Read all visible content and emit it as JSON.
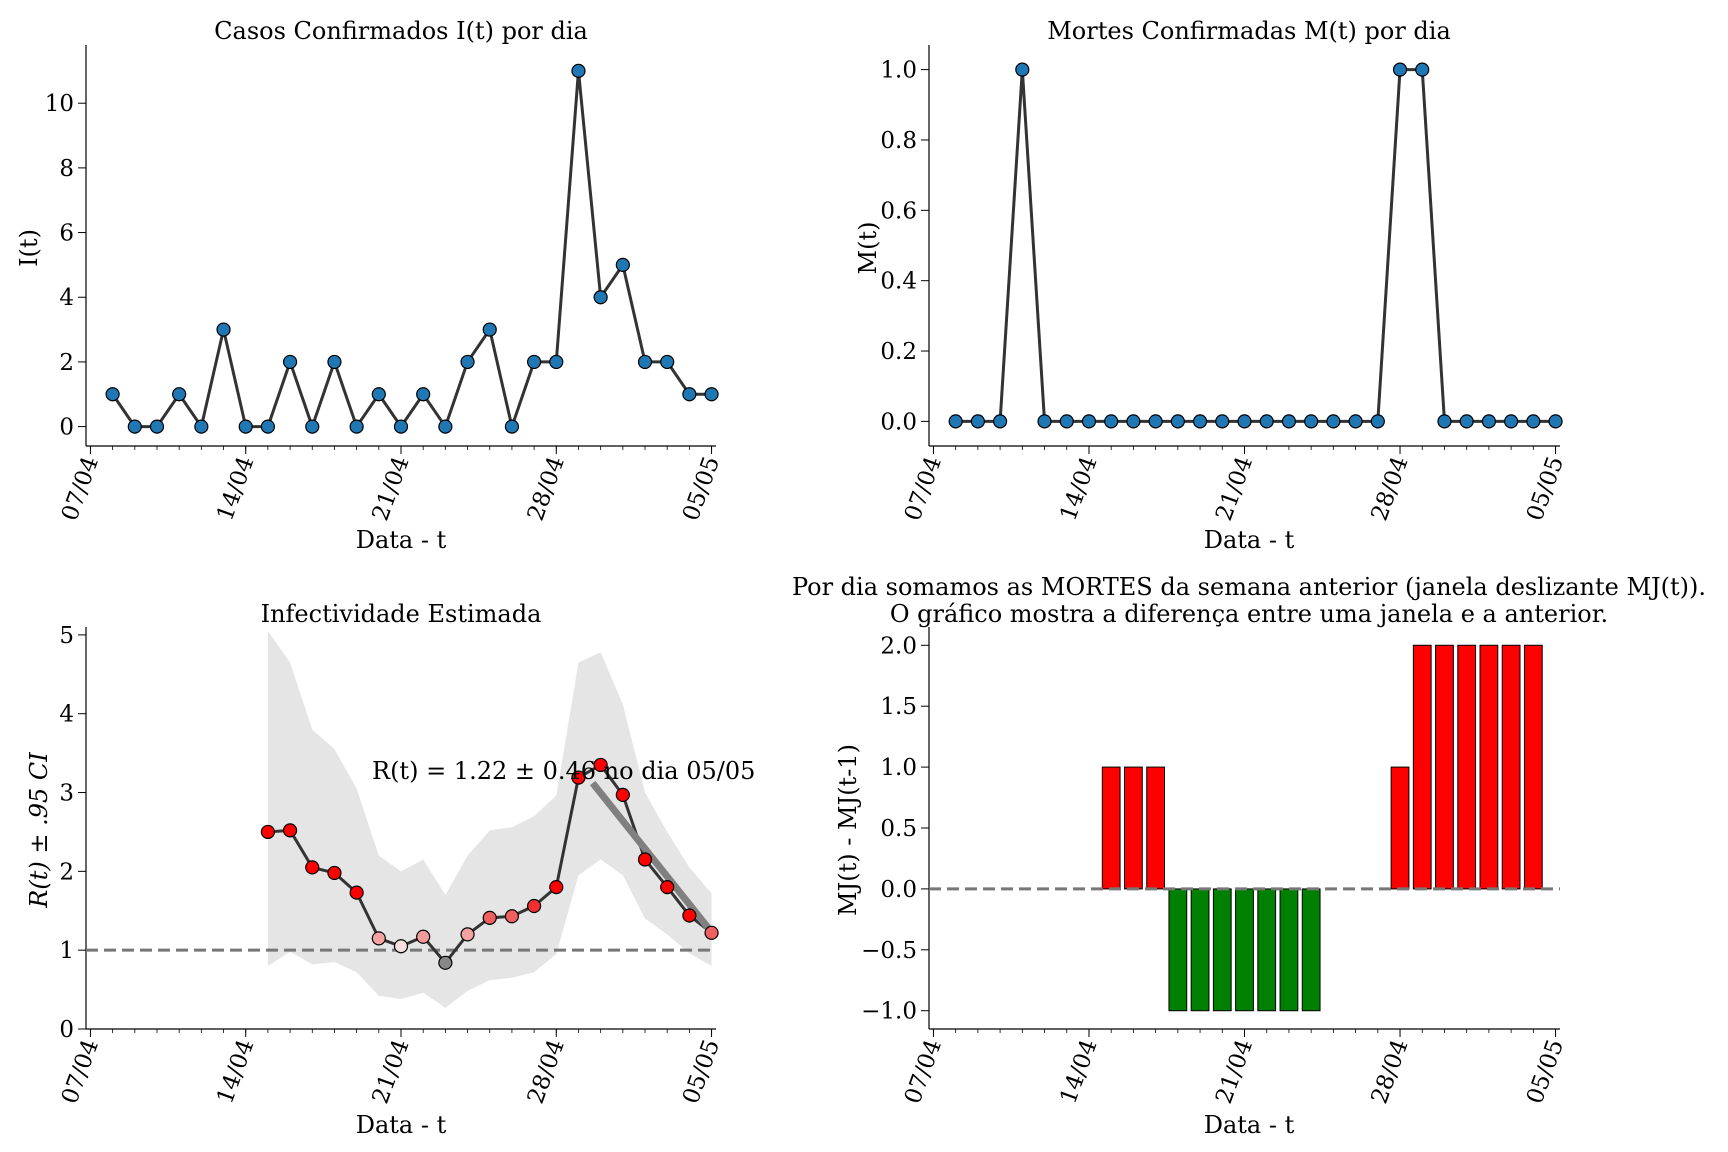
{
  "x_ticks": [
    "07/04",
    "14/04",
    "21/04",
    "28/04",
    "05/05"
  ],
  "charts": [
    {
      "id": "cases",
      "title": "Casos Confirmados I(t) por dia",
      "ylabel": "I(t)",
      "xlabel": "Data - t"
    },
    {
      "id": "deaths",
      "title": "Mortes Confirmadas M(t) por dia",
      "ylabel": "M(t)",
      "xlabel": "Data - t"
    },
    {
      "id": "rt",
      "title": "Infectividade Estimada",
      "ylabel": "R(t) ± .95 CI",
      "xlabel": "Data - t",
      "annotation": "R(t) = 1.22 ± 0.46 no dia 05/05"
    },
    {
      "id": "mj",
      "title": "Por dia somamos as MORTES da semana anterior (janela deslizante MJ(t)).",
      "title2": "O gráfico mostra a diferença entre uma janela e a anterior.",
      "ylabel": "MJ(t) - MJ(t-1)",
      "xlabel": "Data - t"
    }
  ],
  "chart_data": [
    {
      "type": "line",
      "title": "Casos Confirmados I(t) por dia",
      "xlabel": "Data - t",
      "ylabel": "I(t)",
      "x": [
        "08/04",
        "09/04",
        "10/04",
        "11/04",
        "12/04",
        "13/04",
        "14/04",
        "15/04",
        "16/04",
        "17/04",
        "18/04",
        "19/04",
        "20/04",
        "21/04",
        "22/04",
        "23/04",
        "24/04",
        "25/04",
        "26/04",
        "27/04",
        "28/04",
        "29/04",
        "30/04",
        "01/05",
        "02/05",
        "03/05",
        "04/05",
        "05/05"
      ],
      "values": [
        1,
        0,
        0,
        1,
        0,
        3,
        0,
        0,
        2,
        0,
        2,
        0,
        1,
        0,
        1,
        0,
        2,
        3,
        0,
        2,
        2,
        11,
        4,
        5,
        2,
        2,
        1,
        1
      ],
      "xlim": [
        "07/04",
        "05/05"
      ],
      "ylim": [
        -0.6,
        11.8
      ],
      "yticks": [
        0,
        2,
        4,
        6,
        8,
        10
      ],
      "color": "#1f77b4"
    },
    {
      "type": "line",
      "title": "Mortes Confirmadas M(t) por dia",
      "xlabel": "Data - t",
      "ylabel": "M(t)",
      "x": [
        "08/04",
        "09/04",
        "10/04",
        "11/04",
        "12/04",
        "13/04",
        "14/04",
        "15/04",
        "16/04",
        "17/04",
        "18/04",
        "19/04",
        "20/04",
        "21/04",
        "22/04",
        "23/04",
        "24/04",
        "25/04",
        "26/04",
        "27/04",
        "28/04",
        "29/04",
        "30/04",
        "01/05",
        "02/05",
        "03/05",
        "04/05",
        "05/05"
      ],
      "values": [
        0,
        0,
        0,
        1,
        0,
        0,
        0,
        0,
        0,
        0,
        0,
        0,
        0,
        0,
        0,
        0,
        0,
        0,
        0,
        0,
        1,
        1,
        0,
        0,
        0,
        0,
        0,
        0
      ],
      "xlim": [
        "07/04",
        "05/05"
      ],
      "ylim": [
        -0.07,
        1.07
      ],
      "yticks": [
        0.0,
        0.2,
        0.4,
        0.6,
        0.8,
        1.0
      ],
      "yformat": 1,
      "color": "#1f77b4"
    },
    {
      "type": "line",
      "title": "Infectividade Estimada",
      "xlabel": "Data - t",
      "ylabel": "R(t) ± .95 CI",
      "x": [
        "15/04",
        "16/04",
        "17/04",
        "18/04",
        "19/04",
        "20/04",
        "21/04",
        "22/04",
        "23/04",
        "24/04",
        "25/04",
        "26/04",
        "27/04",
        "28/04",
        "29/04",
        "30/04",
        "01/05",
        "02/05",
        "03/05",
        "04/05",
        "05/05"
      ],
      "values": [
        2.5,
        2.52,
        2.05,
        1.98,
        1.73,
        1.15,
        1.05,
        1.17,
        0.84,
        1.2,
        1.41,
        1.43,
        1.56,
        1.8,
        3.19,
        3.35,
        2.97,
        2.15,
        1.8,
        1.44,
        1.22
      ],
      "ci_lower": [
        0.8,
        0.98,
        0.82,
        0.85,
        0.72,
        0.42,
        0.38,
        0.46,
        0.27,
        0.48,
        0.62,
        0.65,
        0.72,
        0.95,
        1.95,
        2.15,
        1.95,
        1.4,
        1.2,
        0.96,
        0.8
      ],
      "ci_upper": [
        5.05,
        4.65,
        3.8,
        3.55,
        3.05,
        2.2,
        2.0,
        2.15,
        1.7,
        2.2,
        2.52,
        2.56,
        2.7,
        2.96,
        4.65,
        4.78,
        4.12,
        3.0,
        2.5,
        2.05,
        1.72
      ],
      "marker_colors": [
        "#ff0000",
        "#ff0000",
        "#ff0000",
        "#ff0000",
        "#ff0000",
        "#f4a3a3",
        "#f8dede",
        "#f49a9a",
        "#888888",
        "#f4a3a3",
        "#f06060",
        "#f06060",
        "#f03030",
        "#ff0000",
        "#ff0000",
        "#ff0000",
        "#ff0000",
        "#ff0000",
        "#ff0000",
        "#ff0000",
        "#f06060"
      ],
      "trend": [
        {
          "x": "30/04",
          "y": 3.12
        },
        {
          "x": "05/05",
          "y": 1.26
        }
      ],
      "reference_line": 1,
      "annotation": "R(t) = 1.22 ± 0.46 no dia 05/05",
      "xlim": [
        "07/04",
        "05/05"
      ],
      "ylim": [
        0,
        5.1
      ],
      "yticks": [
        0,
        1,
        2,
        3,
        4,
        5
      ]
    },
    {
      "type": "bar",
      "title": "Por dia somamos as MORTES da semana anterior (janela deslizante MJ(t)). O gráfico mostra a diferença entre uma janela e a anterior.",
      "xlabel": "Data - t",
      "ylabel": "MJ(t) - MJ(t-1)",
      "x": [
        "08/04",
        "09/04",
        "10/04",
        "11/04",
        "12/04",
        "13/04",
        "14/04",
        "15/04",
        "16/04",
        "17/04",
        "18/04",
        "19/04",
        "20/04",
        "21/04",
        "22/04",
        "23/04",
        "24/04",
        "25/04",
        "26/04",
        "27/04",
        "28/04",
        "29/04",
        "30/04",
        "01/05",
        "02/05",
        "03/05",
        "04/05",
        "05/05"
      ],
      "values": [
        0,
        0,
        0,
        0,
        0,
        0,
        0,
        1,
        1,
        1,
        -1,
        -1,
        -1,
        -1,
        -1,
        -1,
        -1,
        0,
        0,
        0,
        1,
        2,
        2,
        2,
        2,
        2,
        2,
        0
      ],
      "positive_color": "#ff0000",
      "negative_color": "#008000",
      "reference_line": 0,
      "xlim": [
        "07/04",
        "05/05"
      ],
      "ylim": [
        -1.15,
        2.15
      ],
      "yticks": [
        -1.0,
        -0.5,
        0.0,
        0.5,
        1.0,
        1.5,
        2.0
      ],
      "yformat": 1
    }
  ]
}
